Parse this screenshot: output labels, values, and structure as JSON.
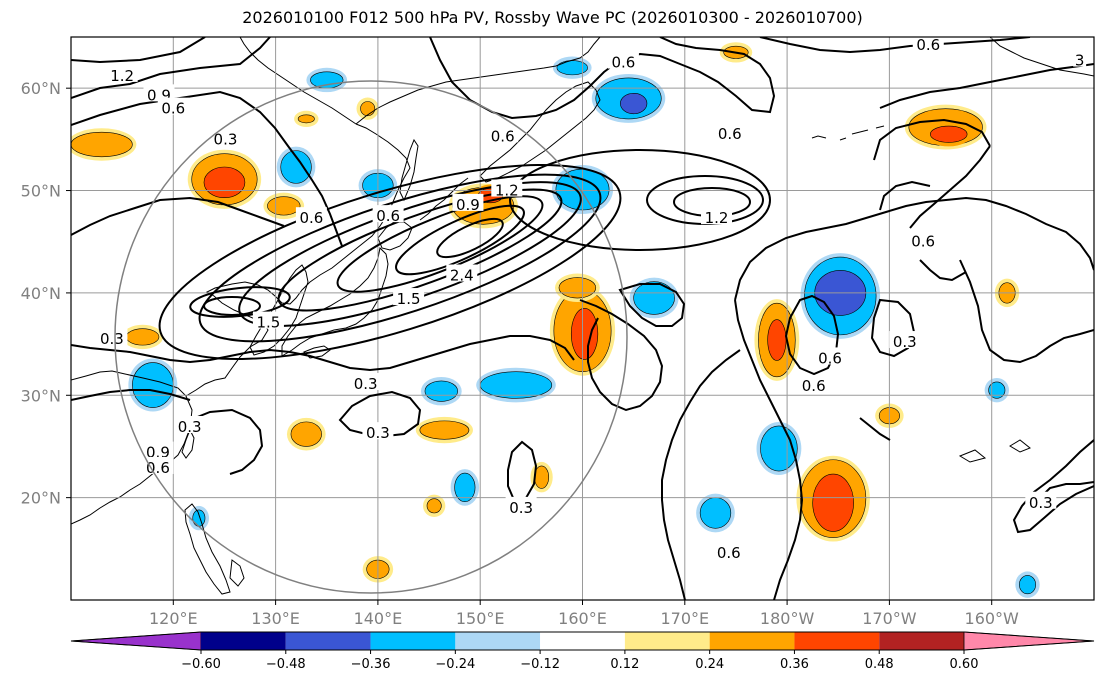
{
  "title": "2026010100 F012 500 hPa PV, Rossby Wave PC (2026010300 - 2026010700)",
  "map": {
    "lon_range_deg_east": [
      110,
      210
    ],
    "lat_range_deg": [
      10,
      65
    ],
    "lat_ticks": [
      {
        "value": 60,
        "label": "60°N"
      },
      {
        "value": 50,
        "label": "50°N"
      },
      {
        "value": 40,
        "label": "40°N"
      },
      {
        "value": 30,
        "label": "30°N"
      },
      {
        "value": 20,
        "label": "20°N"
      }
    ],
    "lon_ticks": [
      {
        "value": 120,
        "label": "120°E"
      },
      {
        "value": 130,
        "label": "130°E"
      },
      {
        "value": 140,
        "label": "140°E"
      },
      {
        "value": 150,
        "label": "150°E"
      },
      {
        "value": 160,
        "label": "160°E"
      },
      {
        "value": 170,
        "label": "170°E"
      },
      {
        "value": 180,
        "label": "180°W"
      },
      {
        "value": 190,
        "label": "170°W"
      },
      {
        "value": 200,
        "label": "160°W"
      }
    ],
    "gridlines": true,
    "range_circle": {
      "center_lon": 139.5,
      "center_lat": 35.8,
      "color": "#808080"
    }
  },
  "contour_labels": [
    {
      "text": "1.2",
      "lon": 115.0,
      "lat": 61.2
    },
    {
      "text": "0.9",
      "lon": 118.6,
      "lat": 59.3
    },
    {
      "text": "0.6",
      "lon": 120.0,
      "lat": 58.0
    },
    {
      "text": "0.3",
      "lon": 125.1,
      "lat": 55.0
    },
    {
      "text": "0.6",
      "lon": 152.2,
      "lat": 55.3
    },
    {
      "text": "0.6",
      "lon": 164.0,
      "lat": 62.5
    },
    {
      "text": "0.6",
      "lon": 174.4,
      "lat": 55.5
    },
    {
      "text": "0.6",
      "lon": 193.8,
      "lat": 64.2
    },
    {
      "text": "1.2",
      "lon": 152.6,
      "lat": 50.0
    },
    {
      "text": "0.9",
      "lon": 148.8,
      "lat": 48.6
    },
    {
      "text": "0.6",
      "lon": 141.0,
      "lat": 47.5
    },
    {
      "text": "0.6",
      "lon": 133.5,
      "lat": 47.3
    },
    {
      "text": "1.2",
      "lon": 173.1,
      "lat": 47.3
    },
    {
      "text": "0.6",
      "lon": 193.3,
      "lat": 45.0
    },
    {
      "text": "1.5",
      "lon": 143.0,
      "lat": 39.4
    },
    {
      "text": "2.4",
      "lon": 148.2,
      "lat": 41.7
    },
    {
      "text": "1.5",
      "lon": 129.3,
      "lat": 37.1
    },
    {
      "text": "0.3",
      "lon": 114.0,
      "lat": 35.5
    },
    {
      "text": "0.3",
      "lon": 138.8,
      "lat": 31.1
    },
    {
      "text": "0.3",
      "lon": 140.0,
      "lat": 26.3
    },
    {
      "text": "0.3",
      "lon": 121.6,
      "lat": 26.9
    },
    {
      "text": "0.9",
      "lon": 118.5,
      "lat": 24.4
    },
    {
      "text": "0.6",
      "lon": 118.5,
      "lat": 22.9
    },
    {
      "text": "0.3",
      "lon": 154.0,
      "lat": 19.0
    },
    {
      "text": "0.6",
      "lon": 184.2,
      "lat": 33.6
    },
    {
      "text": "0.6",
      "lon": 182.6,
      "lat": 30.9
    },
    {
      "text": "0.3",
      "lon": 191.5,
      "lat": 35.2
    },
    {
      "text": "0.6",
      "lon": 174.3,
      "lat": 14.6
    },
    {
      "text": "0.3",
      "lon": 204.8,
      "lat": 19.5
    },
    {
      "text": "3",
      "lon": 208.6,
      "lat": 62.7
    }
  ],
  "colorbar": {
    "ticks": [
      "−0.60",
      "−0.48",
      "−0.36",
      "−0.24",
      "−0.12",
      "0.12",
      "0.24",
      "0.36",
      "0.48",
      "0.60"
    ],
    "colors": {
      "under": "#9932cc",
      "bins": [
        "#00008b",
        "#3a56d4",
        "#00bfff",
        "#add8f5",
        "#ffffff",
        "#ffeb8a",
        "#ffa500",
        "#ff4500",
        "#b22222"
      ],
      "over": "#ff88aa"
    }
  },
  "shading_blobs": [
    {
      "cat": "pos2",
      "lon": 125.0,
      "lat": 51.1,
      "rlon": 3.2,
      "rlat": 2.5
    },
    {
      "cat": "pos3",
      "lon": 125.0,
      "lat": 50.8,
      "rlon": 2.0,
      "rlat": 1.5
    },
    {
      "cat": "pos2",
      "lon": 113.0,
      "lat": 54.5,
      "rlon": 3.0,
      "rlat": 1.2
    },
    {
      "cat": "pos2",
      "lon": 130.8,
      "lat": 48.5,
      "rlon": 1.6,
      "rlat": 0.9
    },
    {
      "cat": "pos2",
      "lon": 150.3,
      "lat": 48.5,
      "rlon": 3.0,
      "rlat": 1.8
    },
    {
      "cat": "pos3",
      "lon": 151.0,
      "lat": 49.5,
      "rlon": 1.2,
      "rlat": 0.7
    },
    {
      "cat": "neg3",
      "lon": 132.0,
      "lat": 52.3,
      "rlon": 1.5,
      "rlat": 1.6
    },
    {
      "cat": "neg3",
      "lon": 140.0,
      "lat": 50.5,
      "rlon": 1.5,
      "rlat": 1.2
    },
    {
      "cat": "neg3",
      "lon": 160.0,
      "lat": 50.1,
      "rlon": 2.6,
      "rlat": 2.0
    },
    {
      "cat": "neg3",
      "lon": 164.5,
      "lat": 59.0,
      "rlon": 3.2,
      "rlat": 2.0
    },
    {
      "cat": "neg4",
      "lon": 165.0,
      "lat": 58.5,
      "rlon": 1.3,
      "rlat": 1.0
    },
    {
      "cat": "pos2",
      "lon": 195.5,
      "lat": 56.2,
      "rlon": 3.6,
      "rlat": 1.8
    },
    {
      "cat": "pos3",
      "lon": 195.8,
      "lat": 55.5,
      "rlon": 1.8,
      "rlat": 0.8
    },
    {
      "cat": "pos2",
      "lon": 160.0,
      "lat": 36.3,
      "rlon": 2.8,
      "rlat": 4.0
    },
    {
      "cat": "pos3",
      "lon": 160.2,
      "lat": 36.0,
      "rlon": 1.3,
      "rlat": 2.5
    },
    {
      "cat": "pos2",
      "lon": 159.5,
      "lat": 40.5,
      "rlon": 1.8,
      "rlat": 1.0
    },
    {
      "cat": "neg3",
      "lon": 167.0,
      "lat": 39.5,
      "rlon": 2.0,
      "rlat": 1.6
    },
    {
      "cat": "pos2",
      "lon": 179.0,
      "lat": 35.4,
      "rlon": 1.8,
      "rlat": 3.6
    },
    {
      "cat": "pos3",
      "lon": 179.0,
      "lat": 35.4,
      "rlon": 0.9,
      "rlat": 2.0
    },
    {
      "cat": "neg3",
      "lon": 185.2,
      "lat": 39.7,
      "rlon": 3.5,
      "rlat": 3.8
    },
    {
      "cat": "neg4",
      "lon": 185.2,
      "lat": 40.0,
      "rlon": 2.5,
      "rlat": 2.2
    },
    {
      "cat": "neg3",
      "lon": 153.5,
      "lat": 31.0,
      "rlon": 3.5,
      "rlat": 1.3
    },
    {
      "cat": "neg3",
      "lon": 146.2,
      "lat": 30.4,
      "rlon": 1.6,
      "rlat": 1.0
    },
    {
      "cat": "neg3",
      "lon": 118.0,
      "lat": 31.0,
      "rlon": 2.0,
      "rlat": 2.2
    },
    {
      "cat": "pos2",
      "lon": 133.0,
      "lat": 26.2,
      "rlon": 1.5,
      "rlat": 1.2
    },
    {
      "cat": "pos2",
      "lon": 146.5,
      "lat": 26.6,
      "rlon": 2.4,
      "rlat": 0.9
    },
    {
      "cat": "neg3",
      "lon": 179.2,
      "lat": 24.8,
      "rlon": 1.8,
      "rlat": 2.2
    },
    {
      "cat": "pos2",
      "lon": 184.5,
      "lat": 19.9,
      "rlon": 3.2,
      "rlat": 3.8
    },
    {
      "cat": "pos3",
      "lon": 184.5,
      "lat": 19.5,
      "rlon": 2.0,
      "rlat": 2.8
    },
    {
      "cat": "neg3",
      "lon": 173.0,
      "lat": 18.5,
      "rlon": 1.5,
      "rlat": 1.5
    },
    {
      "cat": "neg3",
      "lon": 148.5,
      "lat": 21.0,
      "rlon": 1.0,
      "rlat": 1.4
    },
    {
      "cat": "pos2",
      "lon": 156.0,
      "lat": 22.0,
      "rlon": 0.7,
      "rlat": 1.1
    },
    {
      "cat": "pos2",
      "lon": 139.0,
      "lat": 58.0,
      "rlon": 0.7,
      "rlat": 0.7
    },
    {
      "cat": "neg3",
      "lon": 135.0,
      "lat": 60.8,
      "rlon": 1.6,
      "rlat": 0.8
    },
    {
      "cat": "neg3",
      "lon": 159.0,
      "lat": 62.0,
      "rlon": 1.5,
      "rlat": 0.7
    },
    {
      "cat": "pos2",
      "lon": 175.0,
      "lat": 63.5,
      "rlon": 1.2,
      "rlat": 0.6
    },
    {
      "cat": "pos2",
      "lon": 140.0,
      "lat": 13.0,
      "rlon": 1.1,
      "rlat": 0.9
    },
    {
      "cat": "pos2",
      "lon": 133.0,
      "lat": 57.0,
      "rlon": 0.8,
      "rlat": 0.4
    },
    {
      "cat": "neg3",
      "lon": 203.5,
      "lat": 11.5,
      "rlon": 0.8,
      "rlat": 0.9
    },
    {
      "cat": "neg3",
      "lon": 200.5,
      "lat": 30.5,
      "rlon": 0.8,
      "rlat": 0.8
    },
    {
      "cat": "pos2",
      "lon": 201.5,
      "lat": 40.0,
      "rlon": 0.8,
      "rlat": 1.0
    },
    {
      "cat": "neg3",
      "lon": 122.5,
      "lat": 18.0,
      "rlon": 0.6,
      "rlat": 0.8
    },
    {
      "cat": "pos2",
      "lon": 145.5,
      "lat": 19.2,
      "rlon": 0.7,
      "rlat": 0.7
    },
    {
      "cat": "pos2",
      "lon": 190.0,
      "lat": 28.0,
      "rlon": 1.0,
      "rlat": 0.8
    },
    {
      "cat": "pos2",
      "lon": 117.0,
      "lat": 35.7,
      "rlon": 1.6,
      "rlat": 0.8
    }
  ]
}
